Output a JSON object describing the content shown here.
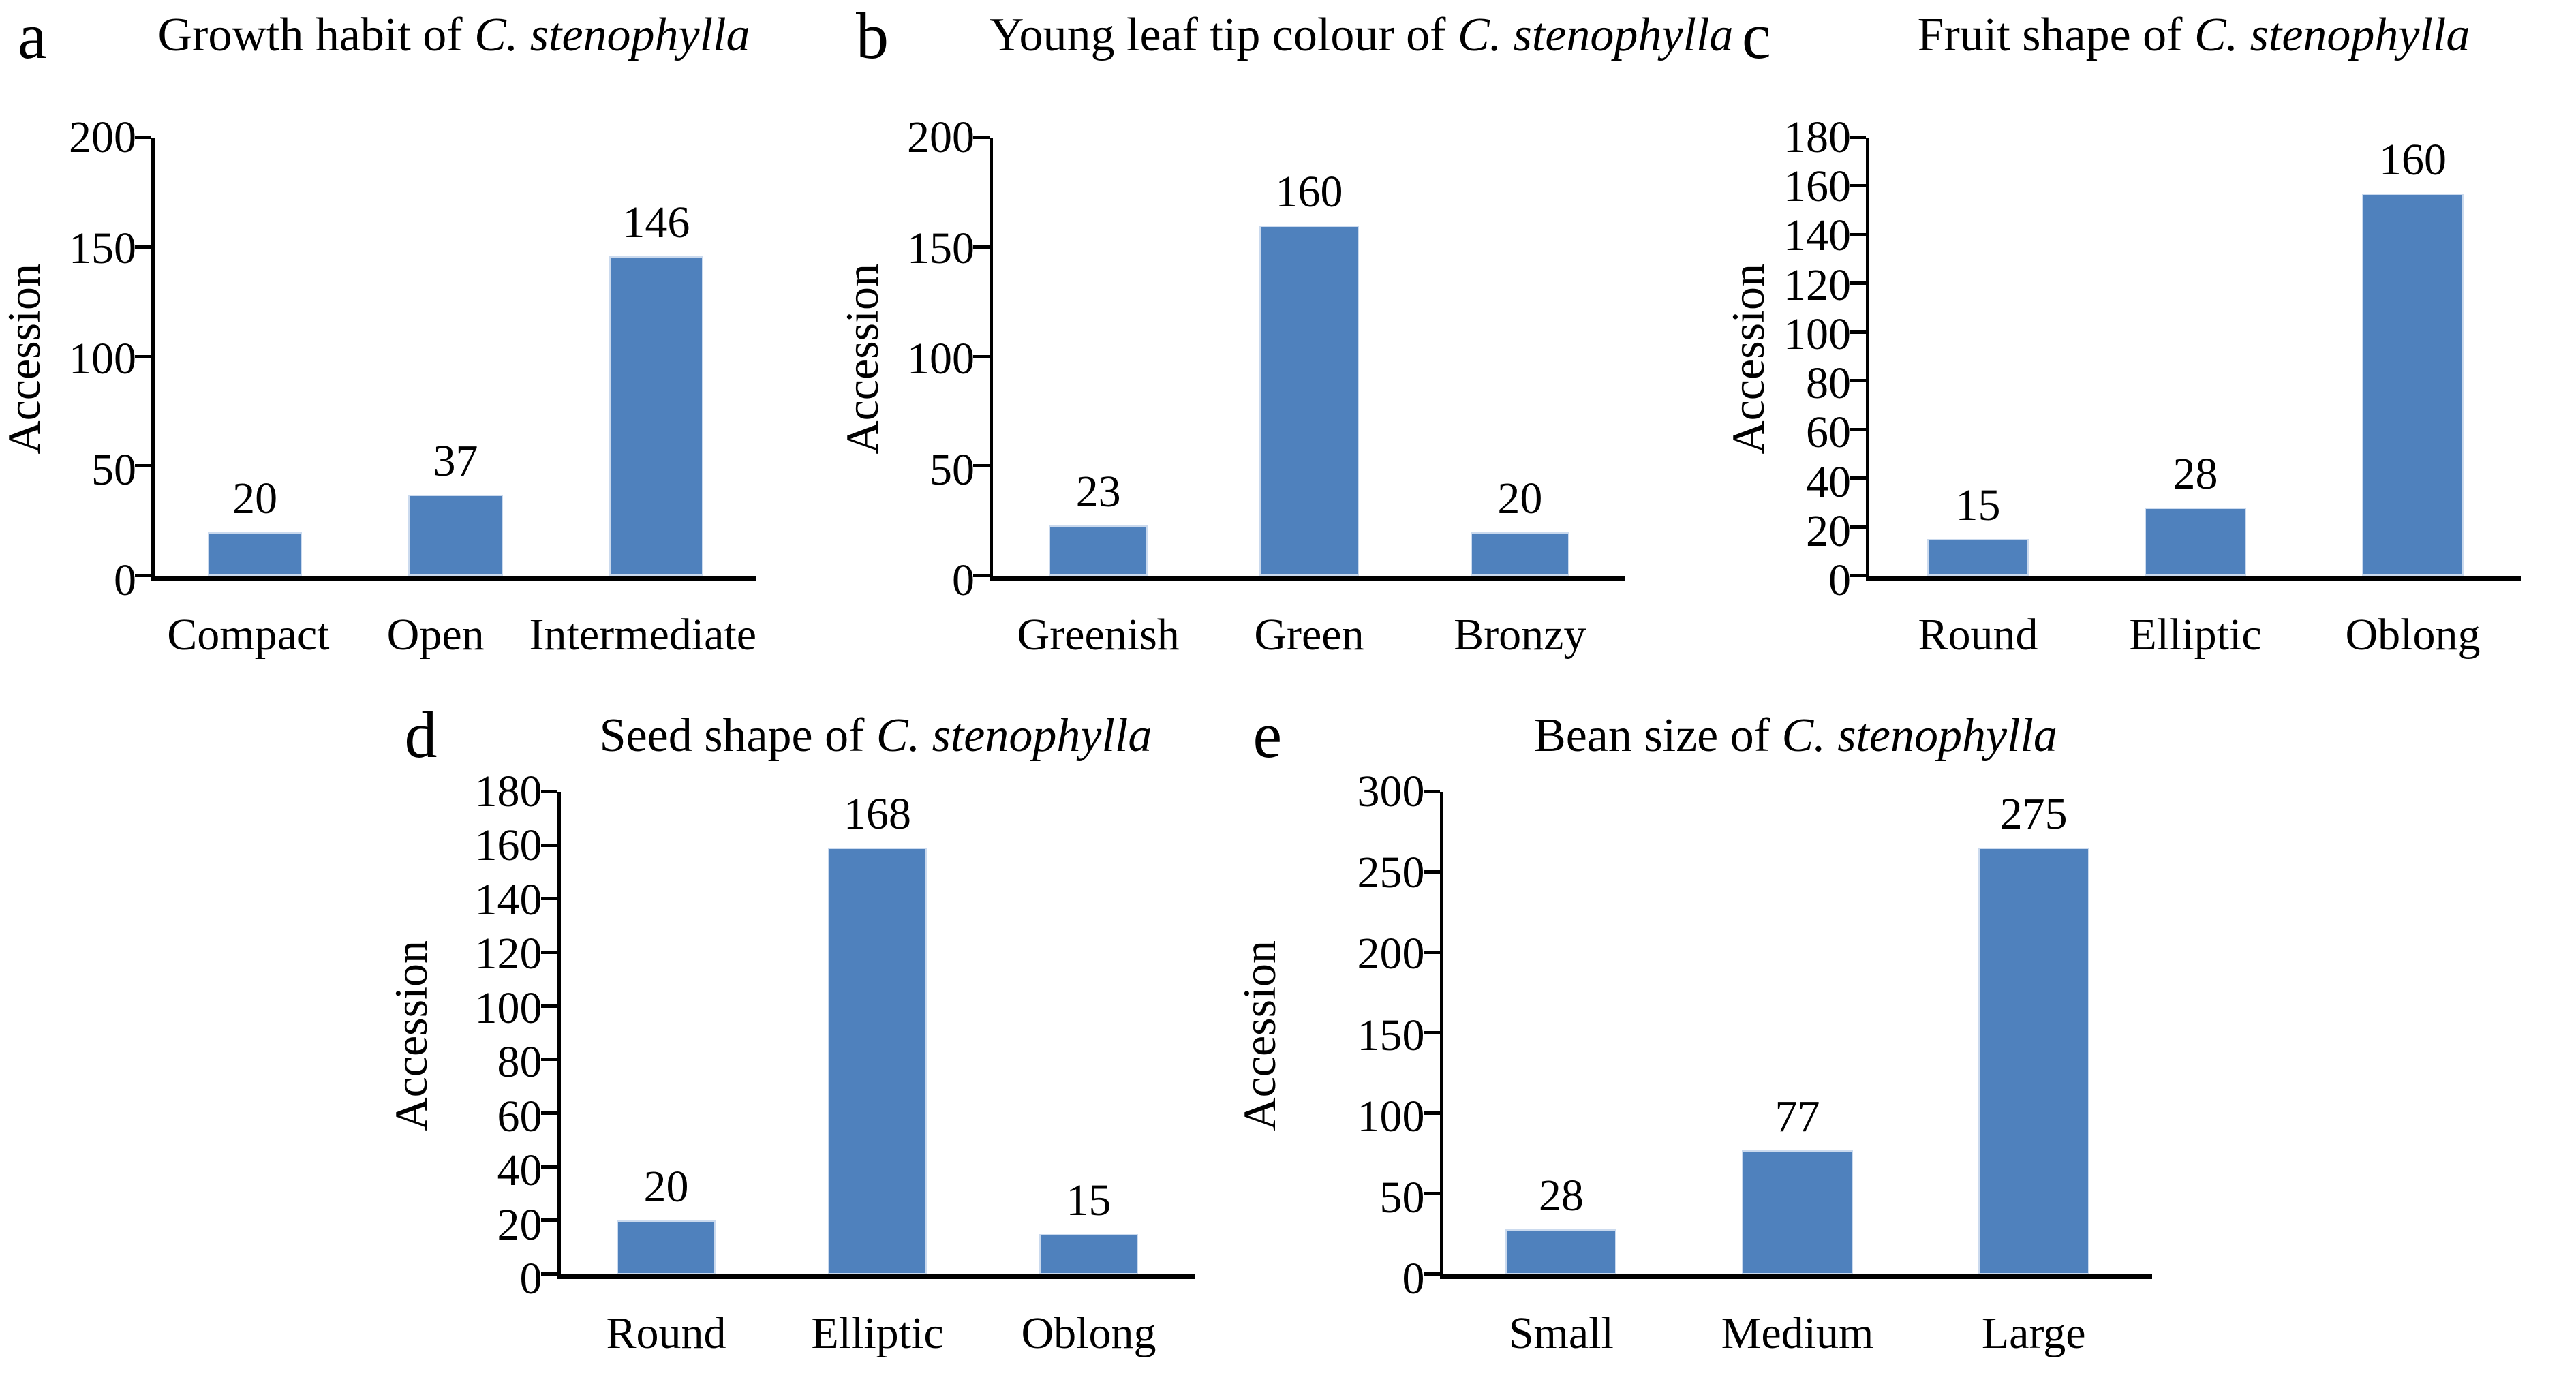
{
  "figure": {
    "background": "#ffffff",
    "text_color": "#000000",
    "bar_color": "#4f81bd",
    "bar_border_color": "#cbdaee",
    "axis_color": "#000000",
    "y_axis_label": "Accession",
    "species_name": "C. stenophylla"
  },
  "chart_data": [
    {
      "type": "bar",
      "letter": "a",
      "title": "Growth habit of C. stenophylla",
      "title_plain": "Growth habit of ",
      "title_italic": "C. stenophylla",
      "xlabel": "",
      "ylabel": "Accession",
      "categories": [
        "Compact",
        "Open",
        "Intermediate"
      ],
      "values": [
        20,
        37,
        146
      ],
      "ylim": [
        0,
        200
      ],
      "yticks": [
        0,
        50,
        100,
        150,
        200
      ],
      "grid": false,
      "legend": false
    },
    {
      "type": "bar",
      "letter": "b",
      "title": "Young leaf tip colour of C. stenophylla",
      "title_plain": "Young leaf tip colour of ",
      "title_italic": "C. stenophylla",
      "xlabel": "",
      "ylabel": "Accession",
      "categories": [
        "Greenish",
        "Green",
        "Bronzy"
      ],
      "values": [
        23,
        160,
        20
      ],
      "ylim": [
        0,
        200
      ],
      "yticks": [
        0,
        50,
        100,
        150,
        200
      ],
      "grid": false,
      "legend": false
    },
    {
      "type": "bar",
      "letter": "c",
      "title": "Fruit shape of C. stenophylla",
      "title_plain": "Fruit shape of ",
      "title_italic": "C. stenophylla",
      "xlabel": "",
      "ylabel": "Accession",
      "categories": [
        "Round",
        "Elliptic",
        "Oblong"
      ],
      "values": [
        15,
        28,
        160
      ],
      "ylim": [
        0,
        180
      ],
      "yticks": [
        0,
        20,
        40,
        60,
        80,
        100,
        120,
        140,
        160,
        180
      ],
      "grid": false,
      "legend": false
    },
    {
      "type": "bar",
      "letter": "d",
      "title": "Seed shape of C. stenophylla",
      "title_plain": "Seed shape of ",
      "title_italic": "C. stenophylla",
      "xlabel": "",
      "ylabel": "Accession",
      "categories": [
        "Round",
        "Elliptic",
        "Oblong"
      ],
      "values": [
        20,
        168,
        15
      ],
      "ylim": [
        0,
        180
      ],
      "yticks": [
        0,
        20,
        40,
        60,
        80,
        100,
        120,
        140,
        160,
        180
      ],
      "grid": false,
      "legend": false
    },
    {
      "type": "bar",
      "letter": "e",
      "title": "Bean size of C. stenophylla",
      "title_plain": "Bean size of ",
      "title_italic": "C. stenophylla",
      "xlabel": "",
      "ylabel": "Accession",
      "categories": [
        "Small",
        "Medium",
        "Large"
      ],
      "values": [
        28,
        77,
        275
      ],
      "ylim": [
        0,
        300
      ],
      "yticks": [
        0,
        50,
        100,
        150,
        200,
        250,
        300
      ],
      "grid": false,
      "legend": false
    }
  ]
}
